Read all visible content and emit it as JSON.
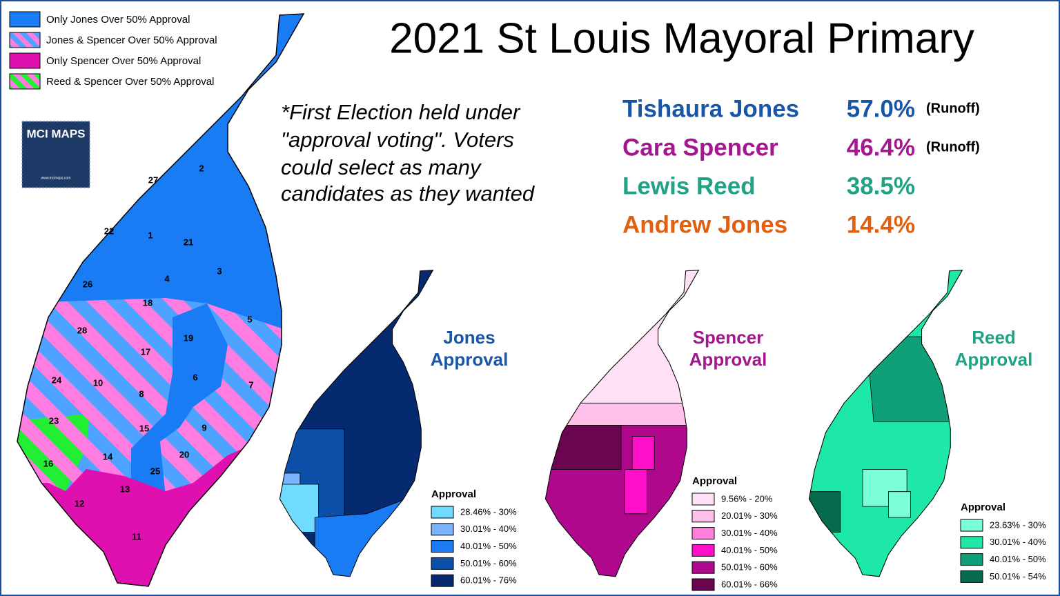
{
  "title": "2021 St Louis Mayoral Primary",
  "note": [
    "*First Election held under",
    "\"approval voting\".  Voters",
    "could select as many",
    "candidates as they wanted"
  ],
  "results": [
    {
      "name": "Tishaura Jones",
      "percent": "57.0%",
      "status": "(Runoff)"
    },
    {
      "name": "Cara Spencer",
      "percent": "46.4%",
      "status": "(Runoff)"
    },
    {
      "name": "Lewis Reed",
      "percent": "38.5%"
    },
    {
      "name": "Andrew Jones",
      "percent": "14.4%"
    }
  ],
  "main_legend": [
    "Only Jones Over 50% Approval",
    "Jones & Spencer Over 50% Approval",
    "Only Spencer Over 50% Approval",
    "Reed & Spencer Over 50% Approval"
  ],
  "logo": {
    "name": "MCI MAPS",
    "url": "www.mcimaps.com"
  },
  "wards": [
    "2",
    "27",
    "22",
    "1",
    "21",
    "3",
    "4",
    "26",
    "18",
    "5",
    "28",
    "19",
    "17",
    "24",
    "10",
    "6",
    "7",
    "8",
    "23",
    "15",
    "9",
    "20",
    "14",
    "16",
    "25",
    "13",
    "12",
    "11"
  ],
  "small_maps": [
    {
      "title": [
        "Jones",
        "Approval"
      ],
      "legend_title": "Approval",
      "legend": [
        "28.46% - 30%",
        "30.01% - 40%",
        "40.01% - 50%",
        "50.01% - 60%",
        "60.01% - 76%"
      ]
    },
    {
      "title": [
        "Spencer",
        "Approval"
      ],
      "legend_title": "Approval",
      "legend": [
        "9.56% - 20%",
        "20.01% - 30%",
        "30.01% - 40%",
        "40.01% - 50%",
        "50.01% - 60%",
        "60.01% - 66%"
      ]
    },
    {
      "title": [
        "Reed",
        "Approval"
      ],
      "legend_title": "Approval",
      "legend": [
        "23.63% - 30%",
        "30.01% - 40%",
        "40.01% - 50%",
        "50.01% - 54%"
      ]
    }
  ]
}
